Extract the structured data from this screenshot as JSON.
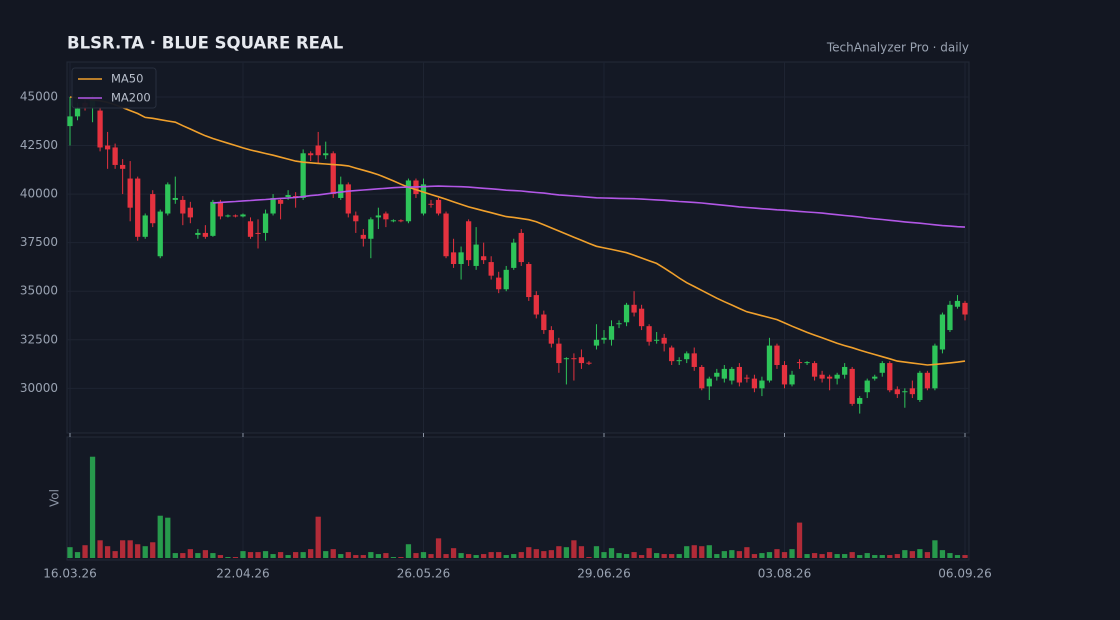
{
  "chart_data": {
    "type": "candlestick",
    "title": "BLSR.TA  ·  BLUE SQUARE REAL",
    "subtitle": "TechAnalyzer Pro · daily",
    "categories": [
      "16.03.26",
      null,
      null,
      null,
      null,
      null,
      null,
      null,
      null,
      null,
      null,
      null,
      null,
      null,
      null,
      null,
      null,
      null,
      null,
      null,
      null,
      null,
      null,
      "22.04.26",
      null,
      null,
      null,
      null,
      null,
      null,
      null,
      null,
      null,
      null,
      null,
      null,
      null,
      null,
      null,
      null,
      null,
      null,
      null,
      null,
      null,
      null,
      null,
      "26.05.26",
      null,
      null,
      null,
      null,
      null,
      null,
      null,
      null,
      null,
      null,
      null,
      null,
      null,
      null,
      null,
      null,
      null,
      null,
      null,
      null,
      null,
      null,
      null,
      "29.06.26",
      null,
      null,
      null,
      null,
      null,
      null,
      null,
      null,
      null,
      null,
      null,
      null,
      null,
      null,
      null,
      null,
      null,
      null,
      null,
      null,
      null,
      null,
      null,
      "03.08.26",
      null,
      null,
      null,
      null,
      null,
      null,
      null,
      null,
      null,
      null,
      null,
      null,
      null,
      null,
      null,
      null,
      null,
      null,
      null,
      null,
      null,
      null,
      null,
      "06.09.26"
    ],
    "open": [
      43500,
      44000,
      44700,
      44500,
      44300,
      42500,
      42400,
      41500,
      40800,
      40800,
      37800,
      40000,
      36800,
      39000,
      39700,
      39700,
      39300,
      37900,
      38000,
      37850,
      39600,
      38850,
      38900,
      38850,
      38600,
      38000,
      38000,
      39000,
      39700,
      39850,
      39900,
      39800,
      42100,
      42500,
      42000,
      42100,
      39800,
      40500,
      38900,
      37900,
      37700,
      38800,
      39000,
      38600,
      38650,
      38600,
      40700,
      39000,
      39500,
      39700,
      39000,
      37000,
      36400,
      38600,
      36300,
      36800,
      36500,
      35700,
      35100,
      36200,
      38000,
      36400,
      34800,
      33800,
      33000,
      32300,
      31500,
      31550,
      31600,
      31320,
      32200,
      32500,
      32500,
      33300,
      33400,
      34300,
      34100,
      33200,
      32450,
      32600,
      32100,
      31400,
      31500,
      31800,
      31100,
      30100,
      30600,
      30500,
      30400,
      31100,
      30550,
      30500,
      30000,
      30400,
      32200,
      31200,
      30200,
      31350,
      31300,
      31300,
      30700,
      30600,
      30500,
      30700,
      31000,
      29200,
      29800,
      30500,
      30800,
      31300,
      29950,
      29800,
      30000,
      29400,
      30800,
      30000,
      32000,
      33000,
      34200,
      34400
    ],
    "high": [
      45000,
      44700,
      45000,
      45100,
      44500,
      43200,
      42600,
      41800,
      41700,
      40900,
      39000,
      40200,
      39200,
      40600,
      40900,
      39900,
      39600,
      38200,
      38400,
      39700,
      39700,
      38950,
      38950,
      39000,
      38800,
      38700,
      39200,
      40000,
      39800,
      40200,
      40100,
      42300,
      42200,
      43200,
      42700,
      42200,
      40900,
      40600,
      39100,
      38200,
      38800,
      39300,
      39100,
      38700,
      38700,
      40800,
      40800,
      40800,
      39700,
      39800,
      39100,
      37700,
      37300,
      38700,
      38300,
      37500,
      36800,
      36000,
      36300,
      37700,
      38200,
      36500,
      35000,
      34000,
      33200,
      32600,
      31600,
      31800,
      32000,
      31400,
      33300,
      33000,
      33500,
      33500,
      34400,
      35000,
      34300,
      33300,
      32900,
      32800,
      32200,
      31600,
      31900,
      32100,
      31200,
      30600,
      31000,
      31200,
      31100,
      31300,
      30700,
      30700,
      30600,
      32600,
      32300,
      31400,
      30900,
      31500,
      31400,
      31400,
      30900,
      30700,
      30800,
      31300,
      31100,
      29600,
      30500,
      30700,
      31400,
      31400,
      30100,
      30000,
      30400,
      30900,
      30900,
      32300,
      33900,
      34500,
      34800,
      34500
    ],
    "low": [
      42500,
      43800,
      44300,
      43700,
      42200,
      41300,
      41300,
      40000,
      38600,
      37600,
      37700,
      38300,
      36700,
      38900,
      39500,
      38400,
      38500,
      37700,
      37700,
      37800,
      38700,
      38800,
      38800,
      38800,
      37700,
      37200,
      37600,
      38900,
      38700,
      39700,
      39300,
      39700,
      41700,
      41600,
      41800,
      39800,
      39700,
      38800,
      38000,
      37300,
      36700,
      38200,
      38300,
      38550,
      38550,
      38500,
      39800,
      38900,
      39300,
      38900,
      36700,
      36200,
      35600,
      36300,
      36100,
      36400,
      35600,
      34900,
      35000,
      36100,
      36300,
      34500,
      33600,
      32800,
      32100,
      30800,
      30200,
      30400,
      31000,
      31200,
      32000,
      32300,
      32200,
      33100,
      33200,
      33700,
      33000,
      32200,
      32300,
      31900,
      31200,
      31200,
      31300,
      30900,
      29900,
      29400,
      30400,
      30300,
      30200,
      30100,
      30300,
      29800,
      29600,
      30300,
      31000,
      30000,
      30100,
      31000,
      31200,
      30400,
      30300,
      29900,
      30200,
      30500,
      29100,
      28700,
      29500,
      30400,
      30600,
      29800,
      29500,
      29000,
      29500,
      29300,
      29900,
      29900,
      31800,
      32900,
      34100,
      33500
    ],
    "close": [
      44000,
      44400,
      44500,
      44900,
      42400,
      42300,
      41500,
      41300,
      39300,
      37800,
      38900,
      38500,
      39100,
      40500,
      39800,
      39000,
      38800,
      38000,
      37800,
      39600,
      38850,
      38900,
      38850,
      38950,
      37800,
      37950,
      39000,
      39800,
      39500,
      39950,
      39800,
      42100,
      42000,
      42000,
      42100,
      40000,
      40500,
      39000,
      38600,
      37700,
      38700,
      38900,
      38700,
      38650,
      38600,
      40700,
      40000,
      40500,
      39450,
      39000,
      36800,
      36400,
      37000,
      36600,
      37400,
      36600,
      35800,
      35100,
      36100,
      37500,
      36500,
      34700,
      33800,
      33000,
      32300,
      31300,
      31550,
      31500,
      31300,
      31300,
      32500,
      32600,
      33200,
      33350,
      34300,
      33900,
      33200,
      32400,
      32500,
      32300,
      31400,
      31450,
      31800,
      31100,
      30000,
      30500,
      30800,
      31000,
      31000,
      30300,
      30500,
      30000,
      30400,
      32200,
      31200,
      30200,
      30700,
      31300,
      31350,
      30600,
      30500,
      30500,
      30700,
      31100,
      29200,
      29500,
      30400,
      30600,
      31300,
      29900,
      29700,
      29850,
      29700,
      30800,
      30000,
      32200,
      33800,
      34300,
      34500,
      33800
    ],
    "up_color": "#2ec45a",
    "down_color": "#e5323f",
    "series": [
      {
        "name": "MA50",
        "color": "#f0a02c",
        "values": [
          45000,
          44950,
          44900,
          44850,
          44800,
          44720,
          44600,
          44450,
          44300,
          44150,
          43950,
          43900,
          43830,
          43760,
          43700,
          43520,
          43350,
          43170,
          43000,
          42860,
          42740,
          42620,
          42500,
          42380,
          42270,
          42180,
          42090,
          42000,
          41900,
          41800,
          41700,
          41640,
          41610,
          41580,
          41550,
          41520,
          41490,
          41450,
          41340,
          41230,
          41120,
          41000,
          40840,
          40680,
          40510,
          40350,
          40230,
          40100,
          39980,
          39860,
          39730,
          39600,
          39470,
          39340,
          39240,
          39140,
          39040,
          38940,
          38840,
          38800,
          38740,
          38680,
          38580,
          38420,
          38260,
          38100,
          37940,
          37780,
          37620,
          37460,
          37310,
          37230,
          37150,
          37070,
          36980,
          36850,
          36710,
          36570,
          36430,
          36190,
          35940,
          35680,
          35440,
          35240,
          35040,
          34840,
          34640,
          34460,
          34290,
          34110,
          33940,
          33840,
          33740,
          33640,
          33540,
          33370,
          33200,
          33040,
          32880,
          32740,
          32600,
          32460,
          32320,
          32200,
          32090,
          31970,
          31850,
          31740,
          31630,
          31520,
          31400,
          31350,
          31300,
          31250,
          31200,
          31230,
          31270,
          31310,
          31350,
          31400
        ]
      },
      {
        "name": "MA200",
        "color": "#b257e6",
        "values": [
          null,
          null,
          null,
          null,
          null,
          null,
          null,
          null,
          null,
          null,
          null,
          null,
          null,
          null,
          null,
          null,
          null,
          null,
          null,
          39540,
          39570,
          39600,
          39620,
          39650,
          39670,
          39700,
          39720,
          39750,
          39780,
          39800,
          39830,
          39870,
          39920,
          39960,
          40010,
          40060,
          40100,
          40150,
          40180,
          40210,
          40240,
          40270,
          40300,
          40330,
          40350,
          40360,
          40370,
          40380,
          40400,
          40410,
          40400,
          40390,
          40380,
          40360,
          40330,
          40300,
          40270,
          40240,
          40200,
          40180,
          40160,
          40120,
          40080,
          40050,
          40000,
          39960,
          39930,
          39900,
          39870,
          39840,
          39810,
          39800,
          39790,
          39780,
          39770,
          39760,
          39740,
          39720,
          39700,
          39680,
          39650,
          39620,
          39600,
          39570,
          39540,
          39500,
          39460,
          39420,
          39380,
          39340,
          39310,
          39280,
          39250,
          39220,
          39190,
          39170,
          39140,
          39110,
          39080,
          39050,
          39020,
          38980,
          38940,
          38900,
          38860,
          38820,
          38770,
          38730,
          38690,
          38650,
          38610,
          38570,
          38530,
          38500,
          38460,
          38420,
          38380,
          38350,
          38320,
          38300
        ]
      }
    ],
    "volume": {
      "label": "Vol",
      "ylim": [
        0,
        120
      ],
      "values": [
        11,
        6,
        13,
        103,
        18,
        12,
        7,
        18,
        18,
        14,
        12,
        16,
        43,
        41,
        5,
        5,
        9,
        5,
        8,
        5,
        3,
        1,
        1,
        7,
        6,
        6,
        7,
        4,
        6,
        3,
        6,
        6,
        9,
        42,
        7,
        9,
        4,
        6,
        3,
        3,
        6,
        4,
        5,
        1,
        1,
        14,
        5,
        6,
        4,
        20,
        4,
        10,
        5,
        4,
        3,
        4,
        6,
        6,
        3,
        4,
        6,
        11,
        9,
        7,
        8,
        12,
        11,
        18,
        12,
        1,
        12,
        6,
        10,
        5,
        4,
        6,
        3,
        10,
        5,
        4,
        4,
        4,
        12,
        13,
        12,
        13,
        4,
        7,
        8,
        7,
        11,
        4,
        5,
        6,
        9,
        6,
        9,
        36,
        4,
        5,
        4,
        6,
        4,
        4,
        6,
        3,
        5,
        3,
        3,
        3,
        4,
        8,
        7,
        9,
        6,
        18,
        8,
        5,
        3,
        3
      ]
    },
    "ylim": [
      27700,
      46800
    ],
    "yticks": [
      30000,
      32500,
      35000,
      37500,
      40000,
      42500,
      45000
    ],
    "grid": true,
    "legend": "upper left"
  }
}
